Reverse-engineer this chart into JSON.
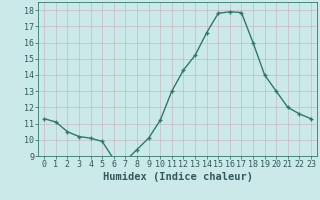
{
  "x": [
    0,
    1,
    2,
    3,
    4,
    5,
    6,
    7,
    8,
    9,
    10,
    11,
    12,
    13,
    14,
    15,
    16,
    17,
    18,
    19,
    20,
    21,
    22,
    23
  ],
  "y": [
    11.3,
    11.1,
    10.5,
    10.2,
    10.1,
    9.9,
    8.8,
    8.7,
    9.4,
    10.1,
    11.2,
    13.0,
    14.3,
    15.2,
    16.6,
    17.8,
    17.9,
    17.85,
    16.0,
    14.0,
    13.0,
    12.0,
    11.6,
    11.3
  ],
  "line_color": "#2d7a6a",
  "marker": "+",
  "marker_size": 3.5,
  "bg_color": "#cce9e9",
  "grid_color": "#b8d8d8",
  "xlabel": "Humidex (Indice chaleur)",
  "ylim": [
    9,
    18.5
  ],
  "yticks": [
    9,
    10,
    11,
    12,
    13,
    14,
    15,
    16,
    17,
    18
  ],
  "xticks": [
    0,
    1,
    2,
    3,
    4,
    5,
    6,
    7,
    8,
    9,
    10,
    11,
    12,
    13,
    14,
    15,
    16,
    17,
    18,
    19,
    20,
    21,
    22,
    23
  ],
  "tick_label_fontsize": 6.0,
  "xlabel_fontsize": 7.5,
  "line_width": 1.0
}
